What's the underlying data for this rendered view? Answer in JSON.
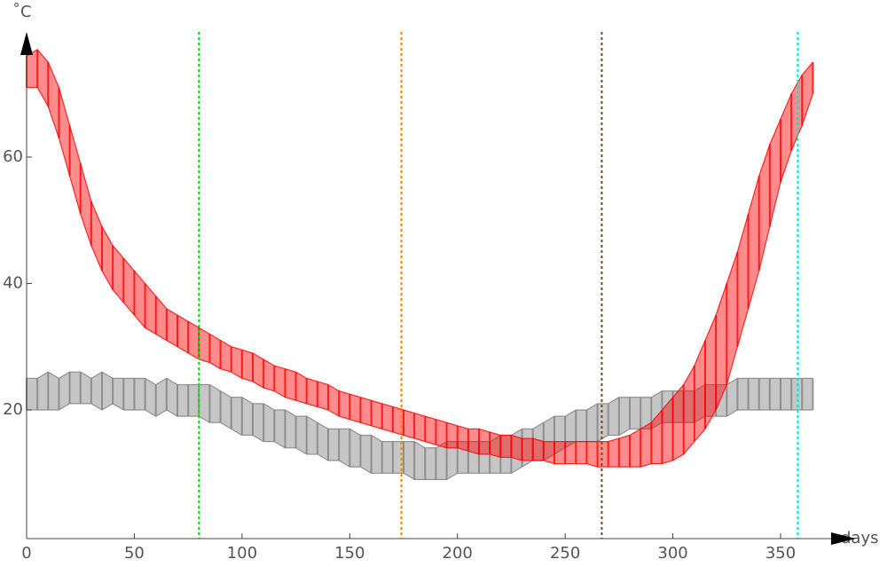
{
  "chart_data": {
    "type": "band",
    "x_label": "days",
    "y_label": "˚C",
    "xlim": [
      0,
      385
    ],
    "ylim": [
      0,
      80
    ],
    "xticks": [
      0,
      50,
      100,
      150,
      200,
      250,
      300,
      350
    ],
    "yticks": [
      20,
      40,
      60
    ],
    "x": [
      0,
      5,
      10,
      15,
      20,
      25,
      30,
      35,
      40,
      45,
      50,
      55,
      60,
      65,
      70,
      75,
      80,
      85,
      90,
      95,
      100,
      105,
      110,
      115,
      120,
      125,
      130,
      135,
      140,
      145,
      150,
      155,
      160,
      165,
      170,
      175,
      180,
      185,
      190,
      195,
      200,
      205,
      210,
      215,
      220,
      225,
      230,
      235,
      240,
      245,
      250,
      255,
      260,
      265,
      270,
      275,
      280,
      285,
      290,
      295,
      300,
      305,
      310,
      315,
      320,
      325,
      330,
      335,
      340,
      345,
      350,
      355,
      360,
      365
    ],
    "series": [
      {
        "color": "#808080",
        "low": [
          20,
          20,
          20,
          20,
          21,
          21,
          21,
          20,
          21,
          20,
          20,
          20,
          19,
          20,
          19,
          19,
          19,
          18,
          18,
          17,
          16,
          16,
          15,
          15,
          14,
          14,
          13,
          13,
          12,
          12,
          11,
          11,
          10,
          10,
          10,
          10,
          9,
          9,
          9,
          9,
          10,
          10,
          10,
          10,
          10,
          10,
          11,
          12,
          12,
          13,
          14,
          15,
          15,
          15,
          16,
          16,
          17,
          17,
          17,
          18,
          18,
          18,
          18,
          19,
          19,
          19,
          20,
          20,
          20,
          20,
          20,
          20,
          20,
          20
        ],
        "high": [
          25,
          25,
          26,
          25,
          26,
          26,
          25,
          26,
          25,
          25,
          25,
          25,
          24,
          25,
          24,
          24,
          24,
          24,
          23,
          22,
          22,
          21,
          21,
          20,
          20,
          19,
          19,
          18,
          17,
          17,
          17,
          16,
          16,
          15,
          15,
          15,
          15,
          14,
          14,
          15,
          15,
          15,
          15,
          15,
          16,
          16,
          17,
          17,
          18,
          19,
          19,
          20,
          20,
          21,
          21,
          22,
          22,
          22,
          22,
          23,
          23,
          23,
          23,
          24,
          24,
          24,
          25,
          25,
          25,
          25,
          25,
          25,
          25,
          25
        ]
      },
      {
        "color": "#ff0000",
        "low": [
          71,
          71,
          68,
          63,
          57,
          51,
          46,
          42,
          39,
          37,
          35,
          33,
          32,
          31,
          30,
          29,
          28,
          27.5,
          26.5,
          26,
          25,
          24.5,
          23.5,
          23,
          22,
          21.5,
          21,
          20.5,
          20,
          19,
          18.5,
          18,
          17.5,
          17,
          16.5,
          16,
          15.5,
          15,
          14.5,
          14,
          14,
          13.5,
          13,
          13,
          12.5,
          12.5,
          12,
          12,
          12,
          11.5,
          11.5,
          11.5,
          11.5,
          11,
          11,
          11,
          11,
          11,
          11.5,
          11.5,
          12,
          13,
          15,
          17,
          20,
          24,
          30,
          36,
          42,
          49,
          56,
          61,
          65,
          70
        ],
        "high": [
          76,
          77,
          75,
          71,
          65,
          59,
          53,
          49,
          46,
          44,
          42,
          40,
          38,
          36,
          35,
          34,
          33,
          32,
          31,
          30,
          29.5,
          29,
          28,
          27,
          26.5,
          26,
          25,
          24.5,
          24,
          23,
          22.5,
          22,
          21.5,
          21,
          20.5,
          20,
          19.5,
          19,
          18.5,
          18,
          17.5,
          17,
          17,
          16.5,
          16,
          16,
          15.5,
          15.5,
          15,
          15,
          15,
          15,
          15,
          15,
          15,
          15.5,
          16,
          17,
          18,
          20,
          22,
          24,
          27,
          31,
          35,
          40,
          45,
          51,
          57,
          62,
          66,
          70,
          73,
          75
        ]
      }
    ],
    "vlines": [
      {
        "x": 80,
        "color": "#00dd00"
      },
      {
        "x": 174,
        "color": "#ff8000"
      },
      {
        "x": 267,
        "color": "#7a4a1a"
      },
      {
        "x": 358,
        "color": "#00e0e0"
      }
    ]
  }
}
